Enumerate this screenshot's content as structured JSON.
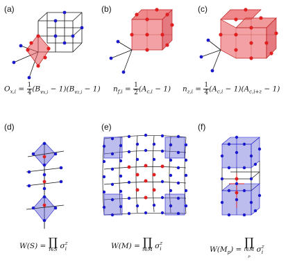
{
  "panels": {
    "a": {
      "label": "(a)"
    },
    "b": {
      "label": "(b)"
    },
    "c": {
      "label": "(c)"
    },
    "d": {
      "label": "(d)"
    },
    "e": {
      "label": "(e)"
    },
    "f": {
      "label": "(f)"
    }
  },
  "formulas": {
    "ox": {
      "lhs": "O",
      "lhs_sub": "x,i",
      "eq": "=",
      "num": "1",
      "den": "4",
      "rhs": "(B",
      "b1_sub": "v",
      "b1_subsub": "x,i",
      "mid": " − 1)(B",
      "b2_sub": "v",
      "b2_subsub": "z,i",
      "tail": " − 1)"
    },
    "nf": {
      "lhs": "n",
      "lhs_sub": "f,i",
      "eq": "=",
      "num": "1",
      "den": "2",
      "rhs": "(A",
      "a_sub": "c,i",
      "tail": " − 1)"
    },
    "nz": {
      "lhs": "n",
      "lhs_sub": "z,i",
      "eq": "=",
      "num": "1",
      "den": "4",
      "rhs": "(A",
      "a_sub": "c,i",
      "mid": " − 1)(A",
      "a2_sub": "c,i+z",
      "tail": " − 1)"
    },
    "ws": {
      "lhs": "W(S) =",
      "prod": "∏",
      "under": "i∈S",
      "body": "σ",
      "body_sup": "z",
      "body_sub": "i"
    },
    "wm": {
      "lhs": "W(M) =",
      "prod": "∏",
      "under": "i∈M",
      "body": "σ",
      "body_sup": "z",
      "body_sub": "i"
    },
    "wmp": {
      "lhs": "W(M",
      "lhs_sub": "p",
      "lhs_tail": ") =",
      "prod": "∏",
      "under": "i∈M",
      "under_sub": "p",
      "body": "σ",
      "body_sup": "z",
      "body_sub": "i"
    }
  },
  "colors": {
    "red": "#e02020",
    "red_fill": "#e8565a",
    "blue": "#1a1acc",
    "blue_fill": "#6a6ad8",
    "line": "#111111"
  }
}
